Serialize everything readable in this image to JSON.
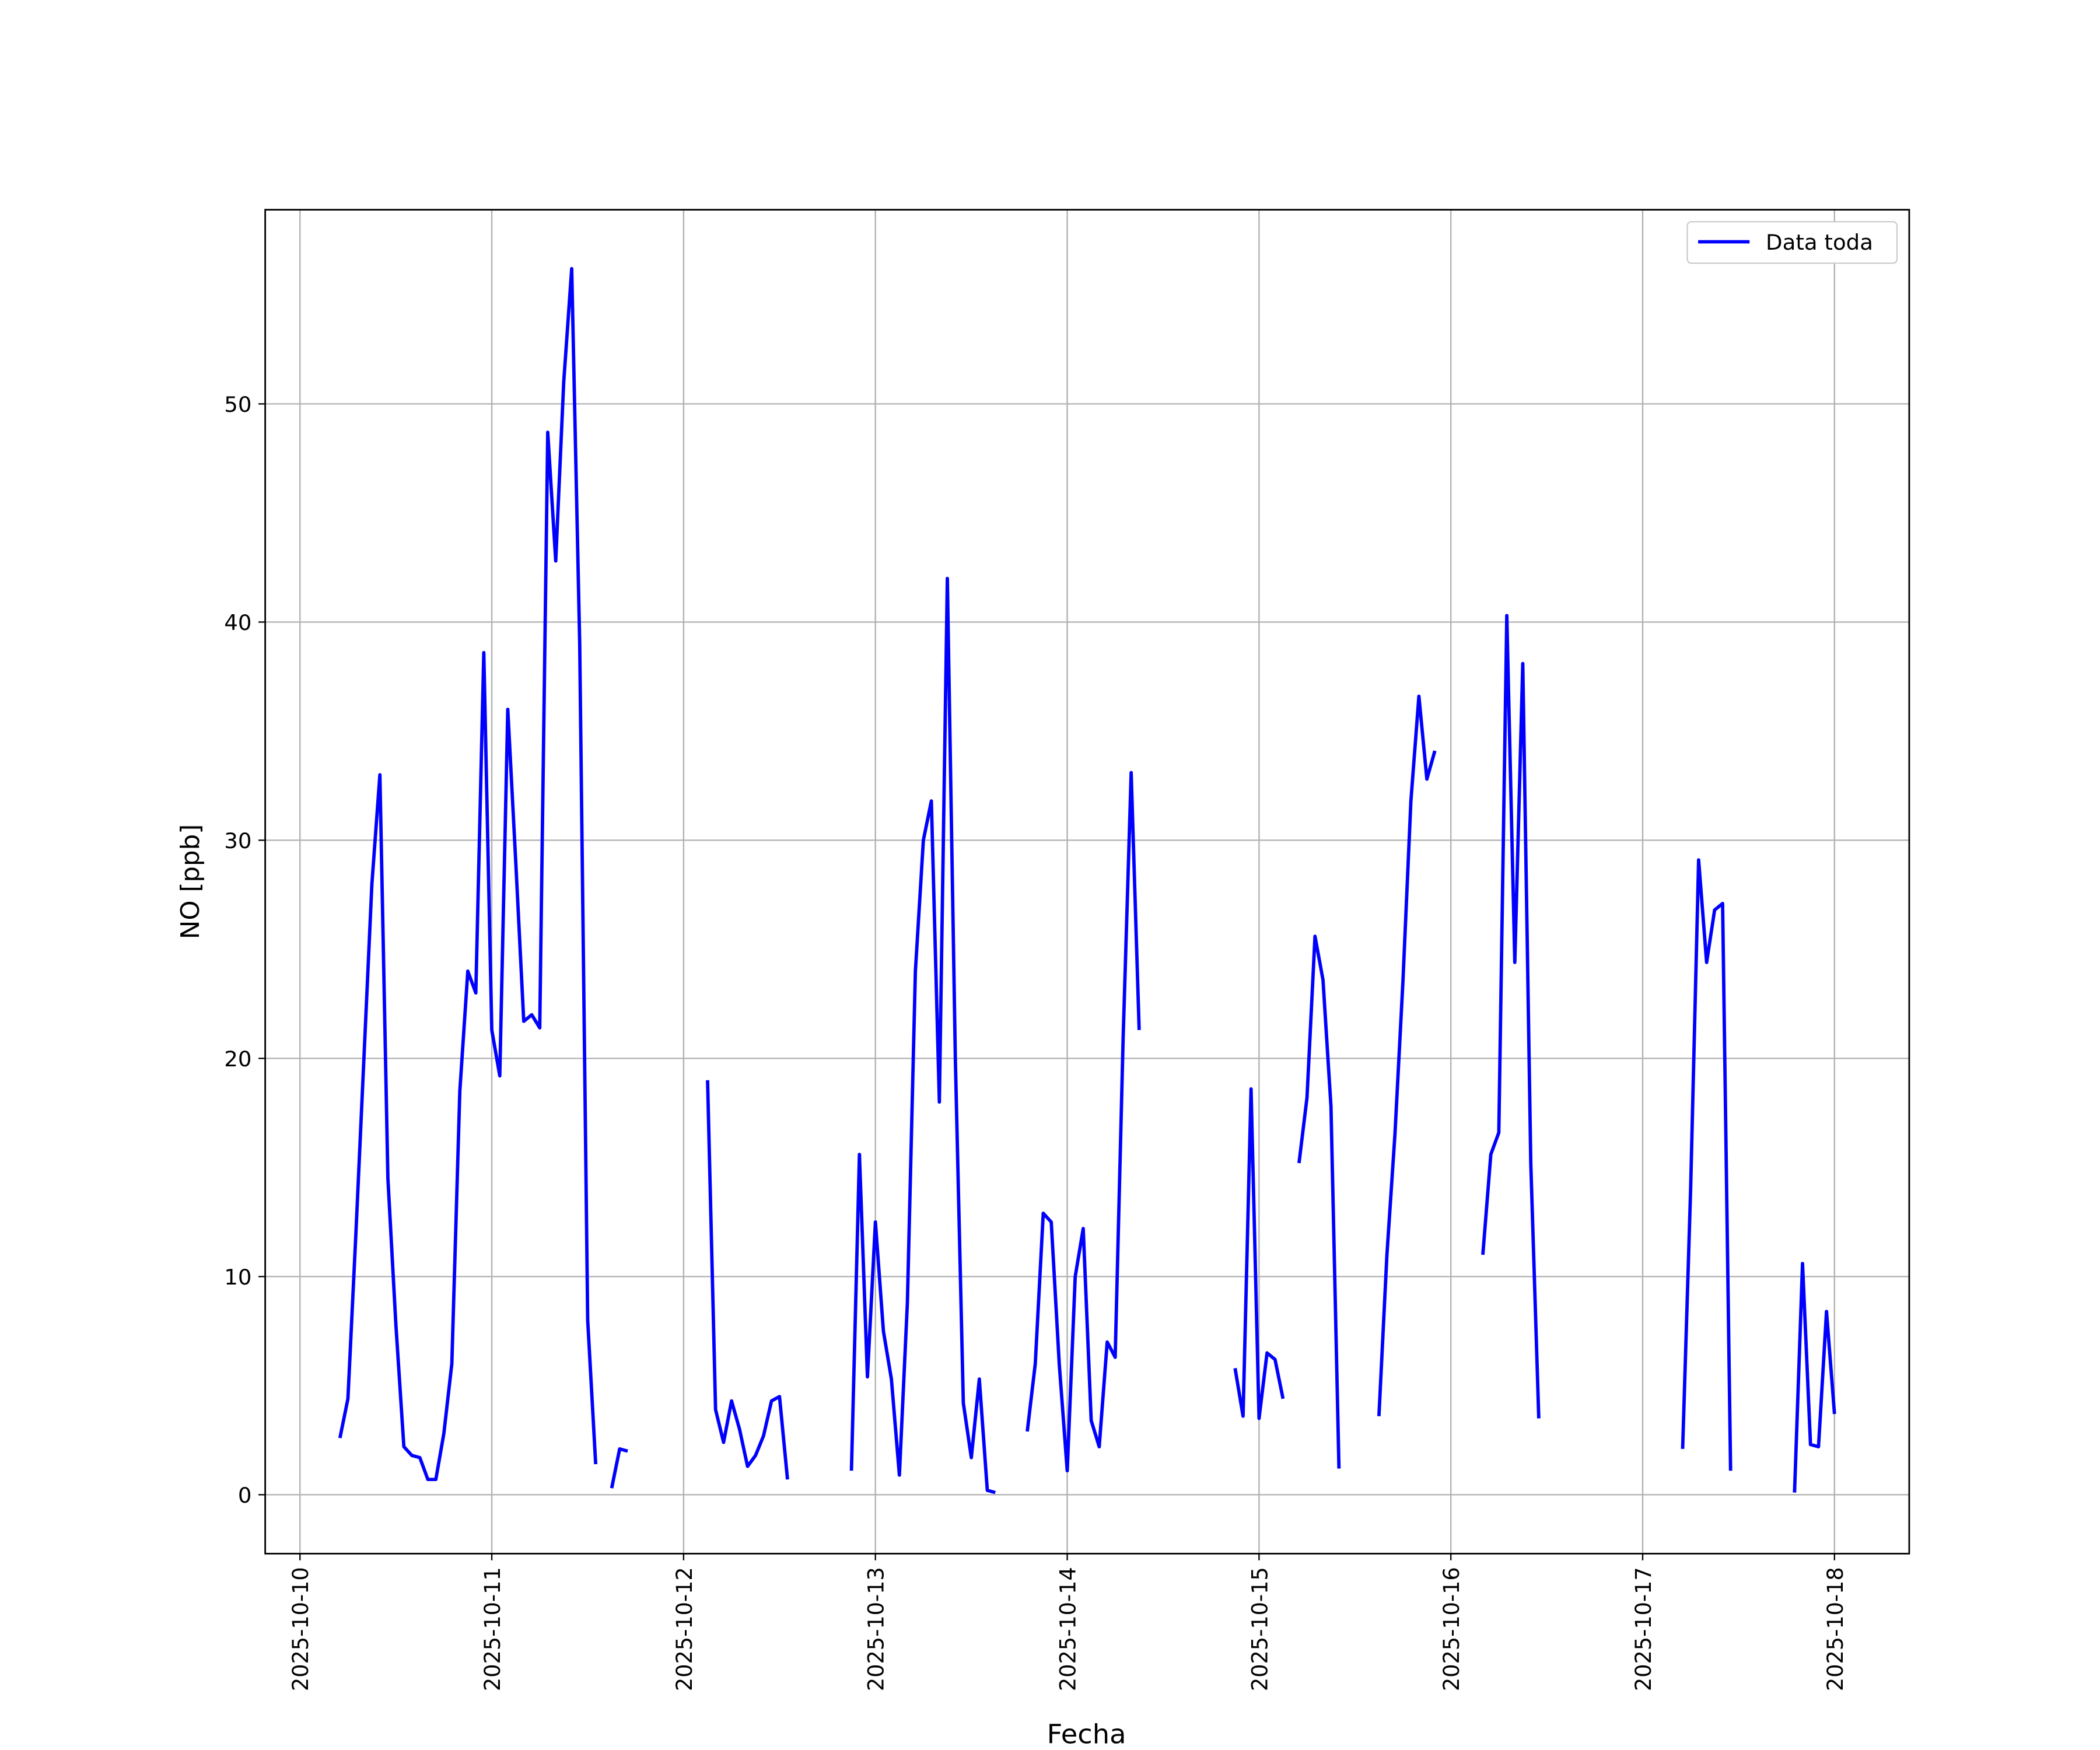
{
  "chart_data": {
    "type": "line",
    "xlabel": "Fecha",
    "ylabel": "NO [ppb]",
    "x": [
      5,
      6,
      7,
      8,
      9,
      10,
      11,
      12,
      13,
      14,
      15,
      16,
      17,
      18,
      19,
      20,
      21,
      22,
      23,
      24,
      25,
      26,
      27,
      28,
      29,
      30,
      31,
      32,
      33,
      34,
      35,
      36,
      37,
      null,
      39,
      40,
      41,
      null,
      51,
      52,
      53,
      54,
      55,
      56,
      57,
      58,
      59,
      60,
      61,
      null,
      69,
      70,
      71,
      72,
      73,
      74,
      75,
      76,
      77,
      78,
      79,
      80,
      81,
      82,
      83,
      84,
      85,
      86,
      87,
      null,
      91,
      92,
      93,
      94,
      95,
      96,
      97,
      98,
      99,
      100,
      101,
      102,
      103,
      104,
      105,
      null,
      117,
      118,
      119,
      120,
      121,
      122,
      123,
      null,
      125,
      126,
      127,
      128,
      129,
      130,
      null,
      135,
      136,
      137,
      138,
      139,
      140,
      141,
      142,
      null,
      148,
      149,
      150,
      151,
      152,
      153,
      154,
      155,
      null,
      173,
      174,
      175,
      176,
      177,
      178,
      179,
      null,
      187,
      188,
      189,
      190,
      191,
      192
    ],
    "series": [
      {
        "name": "Data toda",
        "color": "#0000ff",
        "values": [
          2.6,
          4.4,
          12,
          20,
          28,
          33,
          14.5,
          7.8,
          2.2,
          1.8,
          1.7,
          0.7,
          0.7,
          2.8,
          6,
          18.5,
          24,
          23,
          38.6,
          21.3,
          19.2,
          36,
          29,
          21.7,
          22,
          21.4,
          48.7,
          42.8,
          51,
          56.2,
          39,
          8,
          1.4,
          null,
          0.3,
          2.1,
          2.0,
          null,
          19,
          3.9,
          2.4,
          4.3,
          3,
          1.3,
          1.8,
          2.7,
          4.3,
          4.5,
          0.7,
          null,
          1.1,
          15.6,
          5.4,
          12.5,
          7.5,
          5.3,
          0.9,
          8.8,
          24,
          30,
          31.8,
          18,
          42,
          20,
          4.2,
          1.7,
          5.3,
          0.2,
          0.1,
          null,
          2.9,
          6,
          12.9,
          12.5,
          6,
          1.1,
          10,
          12.2,
          3.4,
          2.2,
          7,
          6.3,
          21,
          33.1,
          21.3,
          null,
          5.8,
          3.6,
          18.6,
          3.5,
          6.5,
          6.2,
          4.4,
          null,
          15.2,
          18.2,
          25.6,
          23.6,
          17.8,
          1.2,
          null,
          3.6,
          11,
          16.5,
          23.5,
          31.8,
          36.6,
          32.8,
          34.1,
          null,
          11,
          15.6,
          16.6,
          40.3,
          24.4,
          38.1,
          15.2,
          3.5,
          null,
          2.1,
          14,
          29.1,
          24.4,
          26.8,
          27.1,
          1.1,
          null,
          0.1,
          10.6,
          2.3,
          2.2,
          8.4,
          3.7
        ]
      }
    ],
    "xlim": [
      -4.35,
      201.35
    ],
    "xticks": [
      {
        "value": 0,
        "label": "2025-10-10"
      },
      {
        "value": 24,
        "label": "2025-10-11"
      },
      {
        "value": 48,
        "label": "2025-10-12"
      },
      {
        "value": 72,
        "label": "2025-10-13"
      },
      {
        "value": 96,
        "label": "2025-10-14"
      },
      {
        "value": 120,
        "label": "2025-10-15"
      },
      {
        "value": 144,
        "label": "2025-10-16"
      },
      {
        "value": 168,
        "label": "2025-10-17"
      },
      {
        "value": 192,
        "label": "2025-10-18"
      }
    ],
    "ylim": [
      -2.7,
      58.9
    ],
    "yticks": [
      0,
      10,
      20,
      30,
      40,
      50
    ],
    "grid": true,
    "legend": "upper right"
  }
}
